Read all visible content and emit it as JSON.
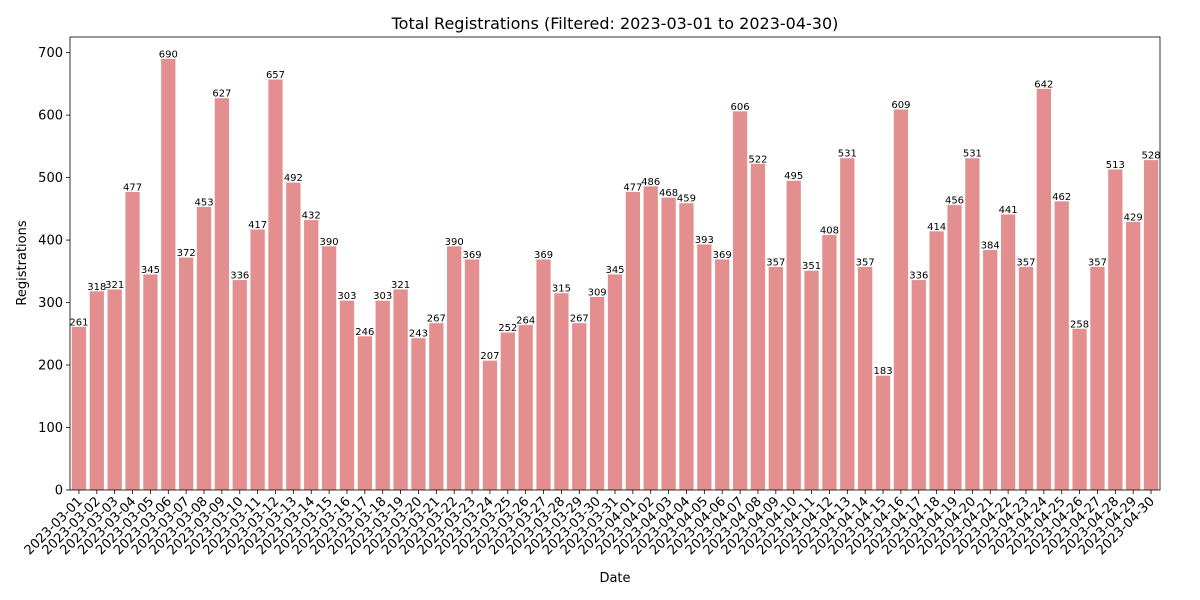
{
  "chart_data": {
    "type": "bar",
    "title": "Total Registrations (Filtered: 2023-03-01 to 2023-04-30)",
    "xlabel": "Date",
    "ylabel": "Registrations",
    "ylim": [
      0,
      725
    ],
    "yticks": [
      0,
      100,
      200,
      300,
      400,
      500,
      600,
      700
    ],
    "grid": false,
    "bar_color": "#e38f8f",
    "categories": [
      "2023-03-01",
      "2023-03-02",
      "2023-03-03",
      "2023-03-04",
      "2023-03-05",
      "2023-03-06",
      "2023-03-07",
      "2023-03-08",
      "2023-03-09",
      "2023-03-10",
      "2023-03-11",
      "2023-03-12",
      "2023-03-13",
      "2023-03-14",
      "2023-03-15",
      "2023-03-16",
      "2023-03-17",
      "2023-03-18",
      "2023-03-19",
      "2023-03-20",
      "2023-03-21",
      "2023-03-22",
      "2023-03-23",
      "2023-03-24",
      "2023-03-25",
      "2023-03-26",
      "2023-03-27",
      "2023-03-28",
      "2023-03-29",
      "2023-03-30",
      "2023-03-31",
      "2023-04-01",
      "2023-04-02",
      "2023-04-03",
      "2023-04-04",
      "2023-04-05",
      "2023-04-06",
      "2023-04-07",
      "2023-04-08",
      "2023-04-09",
      "2023-04-10",
      "2023-04-11",
      "2023-04-12",
      "2023-04-13",
      "2023-04-14",
      "2023-04-15",
      "2023-04-16",
      "2023-04-17",
      "2023-04-18",
      "2023-04-19",
      "2023-04-20",
      "2023-04-21",
      "2023-04-22",
      "2023-04-23",
      "2023-04-24",
      "2023-04-25",
      "2023-04-26",
      "2023-04-27",
      "2023-04-28",
      "2023-04-29",
      "2023-04-30"
    ],
    "values": [
      261,
      318,
      321,
      477,
      345,
      690,
      372,
      453,
      627,
      336,
      417,
      657,
      492,
      432,
      390,
      303,
      246,
      303,
      321,
      243,
      267,
      390,
      369,
      207,
      252,
      264,
      369,
      315,
      267,
      309,
      345,
      477,
      486,
      468,
      459,
      393,
      369,
      606,
      522,
      357,
      495,
      351,
      408,
      531,
      357,
      183,
      609,
      336,
      414,
      456,
      531,
      384,
      441,
      357,
      642,
      462,
      258,
      357,
      513,
      429,
      528
    ]
  }
}
